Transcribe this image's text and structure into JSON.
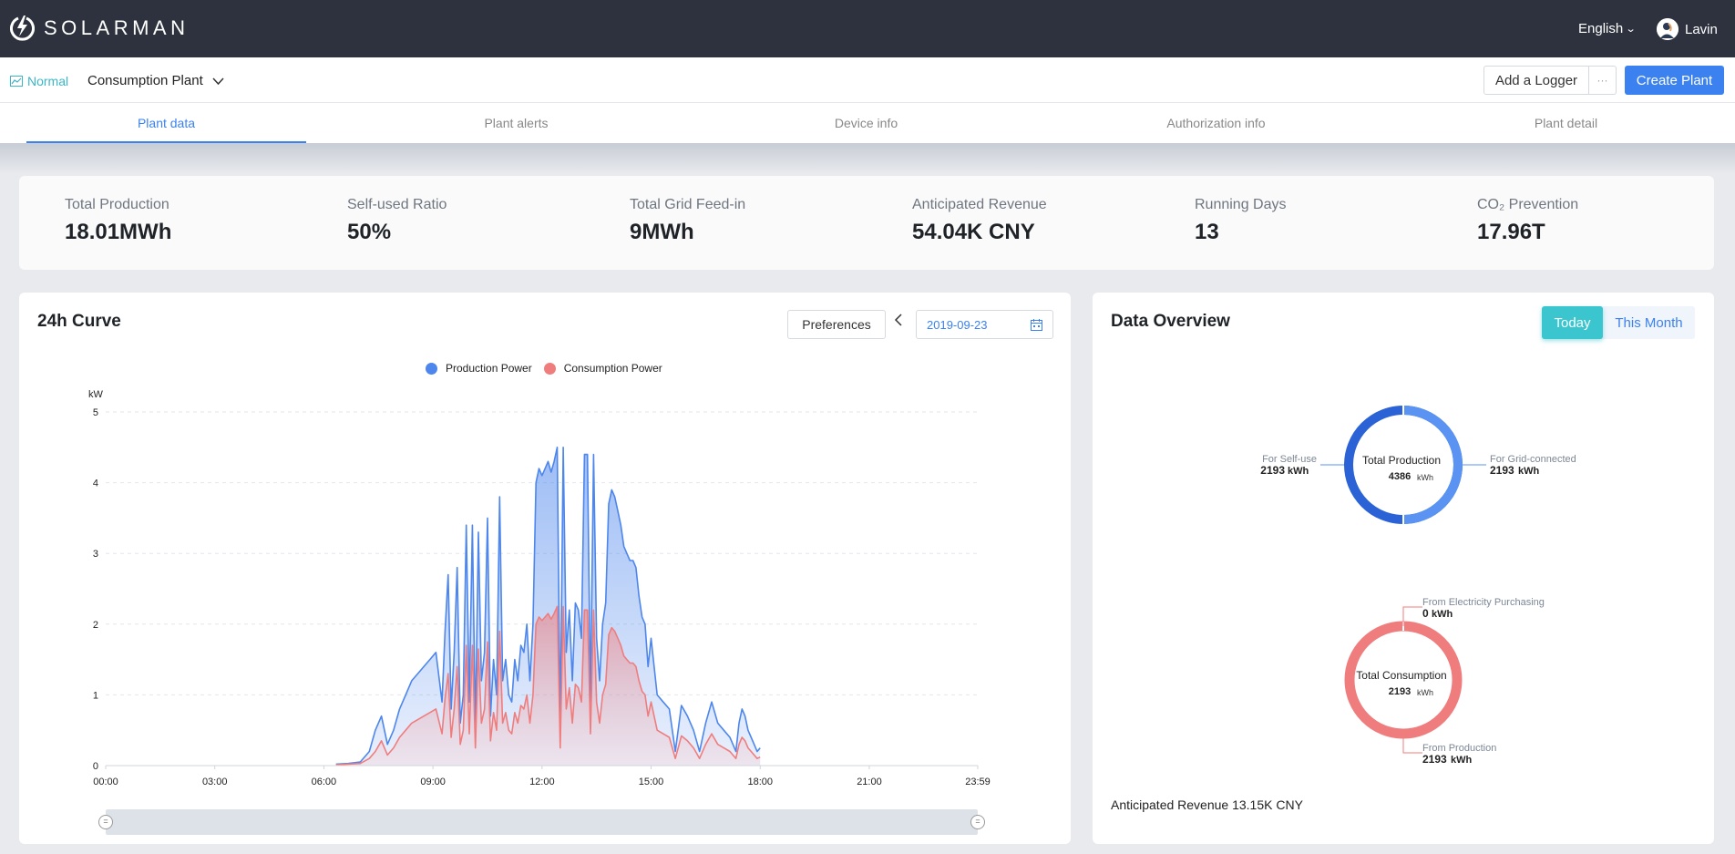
{
  "app": {
    "brand": "SOLARMAN",
    "language": "English",
    "user": "Lavin"
  },
  "subbar": {
    "status": "Normal",
    "plant": "Consumption Plant",
    "add_logger": "Add a Logger",
    "more": "···",
    "create_plant": "Create Plant"
  },
  "tabs": [
    "Plant data",
    "Plant alerts",
    "Device info",
    "Authorization info",
    "Plant detail"
  ],
  "stats": [
    {
      "label": "Total Production",
      "value": "18.01MWh"
    },
    {
      "label": "Self-used Ratio",
      "value": "50%"
    },
    {
      "label": "Total Grid Feed-in",
      "value": "9MWh"
    },
    {
      "label": "Anticipated Revenue",
      "value": "54.04K CNY"
    },
    {
      "label": "Running Days",
      "value": "13"
    },
    {
      "label": "CO₂ Prevention",
      "value": "17.96T"
    }
  ],
  "curve": {
    "title": "24h Curve",
    "preferences": "Preferences",
    "date": "2019-09-23"
  },
  "overview": {
    "title": "Data Overview",
    "today": "Today",
    "this_month": "This Month",
    "production": {
      "center_label": "Total Production",
      "center_value": "4386",
      "unit": "kWh",
      "left_label": "For Self-use",
      "left_value": "2193",
      "right_label": "For Grid-connected",
      "right_value": "2193"
    },
    "consumption": {
      "center_label": "Total Consumption",
      "center_value": "2193",
      "unit": "kWh",
      "top_label": "From Electricity Purchasing",
      "top_value": "0",
      "bottom_label": "From Production",
      "bottom_value": "2193"
    },
    "revenue": "Anticipated Revenue 13.15K CNY"
  },
  "colors": {
    "production": "#4d86ec",
    "consumption": "#f07d7d",
    "accent": "#3b82f0",
    "teal": "#3ac5cf",
    "self_use": "#2b63d6",
    "grid": "#5a93f2"
  },
  "chart_data": {
    "type": "area",
    "ylabel": "kW",
    "ylim": [
      0,
      5
    ],
    "yticks": [
      0,
      1,
      2,
      3,
      4,
      5
    ],
    "xlim": [
      "00:00",
      "23:59"
    ],
    "xticks": [
      "00:00",
      "03:00",
      "06:00",
      "09:00",
      "12:00",
      "15:00",
      "18:00",
      "21:00",
      "23:59"
    ],
    "series": [
      {
        "name": "Production Power",
        "x": [
          "06:20",
          "06:40",
          "07:00",
          "07:15",
          "07:25",
          "07:35",
          "07:45",
          "07:55",
          "08:05",
          "08:15",
          "08:25",
          "08:35",
          "08:45",
          "08:55",
          "09:05",
          "09:15",
          "09:20",
          "09:25",
          "09:30",
          "09:35",
          "09:40",
          "09:45",
          "09:50",
          "09:55",
          "10:00",
          "10:05",
          "10:10",
          "10:15",
          "10:20",
          "10:25",
          "10:30",
          "10:35",
          "10:40",
          "10:45",
          "10:50",
          "10:55",
          "11:00",
          "11:05",
          "11:10",
          "11:15",
          "11:20",
          "11:25",
          "11:30",
          "11:35",
          "11:40",
          "11:45",
          "11:50",
          "11:55",
          "12:00",
          "12:05",
          "12:10",
          "12:15",
          "12:20",
          "12:25",
          "12:30",
          "12:35",
          "12:40",
          "12:45",
          "12:50",
          "12:55",
          "13:00",
          "13:05",
          "13:10",
          "13:15",
          "13:20",
          "13:25",
          "13:30",
          "13:35",
          "13:40",
          "13:45",
          "13:50",
          "13:55",
          "14:00",
          "14:05",
          "14:10",
          "14:15",
          "14:20",
          "14:25",
          "14:30",
          "14:35",
          "14:40",
          "14:45",
          "14:50",
          "14:55",
          "15:00",
          "15:10",
          "15:20",
          "15:30",
          "15:40",
          "15:50",
          "16:00",
          "16:10",
          "16:20",
          "16:30",
          "16:40",
          "16:50",
          "17:00",
          "17:10",
          "17:15",
          "17:20",
          "17:25",
          "17:30",
          "17:35",
          "17:40",
          "17:45",
          "17:50",
          "17:55",
          "18:00"
        ],
        "values": [
          0.02,
          0.03,
          0.05,
          0.2,
          0.5,
          0.7,
          0.3,
          0.5,
          0.8,
          1.0,
          1.2,
          1.3,
          1.4,
          1.5,
          1.6,
          0.9,
          1.9,
          2.7,
          0.8,
          1.6,
          2.8,
          0.6,
          1.0,
          3.4,
          0.9,
          3.4,
          0.5,
          3.3,
          1.2,
          1.6,
          3.5,
          0.7,
          1.5,
          1.0,
          3.8,
          1.2,
          1.5,
          1.0,
          0.9,
          1.5,
          1.2,
          1.7,
          1.6,
          2.0,
          1.2,
          2.0,
          4.0,
          4.2,
          4.1,
          4.2,
          4.3,
          4.15,
          4.3,
          4.5,
          0.5,
          4.5,
          1.6,
          2.2,
          1.2,
          2.3,
          2.2,
          1.8,
          4.4,
          4.4,
          0.9,
          4.4,
          1.8,
          1.2,
          2.0,
          2.3,
          3.7,
          3.9,
          3.8,
          3.6,
          3.4,
          3.1,
          3.0,
          2.9,
          2.9,
          2.8,
          2.4,
          2.1,
          2.0,
          1.4,
          1.8,
          1.0,
          0.9,
          0.8,
          0.2,
          0.85,
          0.7,
          0.5,
          0.2,
          0.6,
          0.9,
          0.6,
          0.5,
          0.4,
          0.3,
          0.2,
          0.6,
          0.8,
          0.7,
          0.5,
          0.4,
          0.3,
          0.2,
          0.25
        ]
      },
      {
        "name": "Consumption Power",
        "x": [
          "06:20",
          "06:40",
          "07:00",
          "07:15",
          "07:25",
          "07:35",
          "07:45",
          "07:55",
          "08:05",
          "08:15",
          "08:25",
          "08:35",
          "08:45",
          "08:55",
          "09:05",
          "09:15",
          "09:20",
          "09:25",
          "09:30",
          "09:35",
          "09:40",
          "09:45",
          "09:50",
          "09:55",
          "10:00",
          "10:05",
          "10:10",
          "10:15",
          "10:20",
          "10:25",
          "10:30",
          "10:35",
          "10:40",
          "10:45",
          "10:50",
          "10:55",
          "11:00",
          "11:05",
          "11:10",
          "11:15",
          "11:20",
          "11:25",
          "11:30",
          "11:35",
          "11:40",
          "11:45",
          "11:50",
          "11:55",
          "12:00",
          "12:05",
          "12:10",
          "12:15",
          "12:20",
          "12:25",
          "12:30",
          "12:35",
          "12:40",
          "12:45",
          "12:50",
          "12:55",
          "13:00",
          "13:05",
          "13:10",
          "13:15",
          "13:20",
          "13:25",
          "13:30",
          "13:35",
          "13:40",
          "13:45",
          "13:50",
          "13:55",
          "14:00",
          "14:05",
          "14:10",
          "14:15",
          "14:20",
          "14:25",
          "14:30",
          "14:35",
          "14:40",
          "14:45",
          "14:50",
          "14:55",
          "15:00",
          "15:10",
          "15:20",
          "15:30",
          "15:40",
          "15:50",
          "16:00",
          "16:10",
          "16:20",
          "16:30",
          "16:40",
          "16:50",
          "17:00",
          "17:10",
          "17:15",
          "17:20",
          "17:25",
          "17:30",
          "17:35",
          "17:40",
          "17:45",
          "17:50",
          "17:55",
          "18:00"
        ],
        "values": [
          0.01,
          0.02,
          0.03,
          0.1,
          0.2,
          0.35,
          0.15,
          0.25,
          0.4,
          0.5,
          0.6,
          0.65,
          0.7,
          0.75,
          0.8,
          0.45,
          0.95,
          1.3,
          0.4,
          0.8,
          1.4,
          0.3,
          0.5,
          1.7,
          0.45,
          1.7,
          0.25,
          1.65,
          0.6,
          0.8,
          1.75,
          0.35,
          0.75,
          0.5,
          1.9,
          0.6,
          0.75,
          0.5,
          0.45,
          0.75,
          0.6,
          0.85,
          0.8,
          1.0,
          0.6,
          1.0,
          2.0,
          2.1,
          2.05,
          2.1,
          2.15,
          2.07,
          2.15,
          2.25,
          0.25,
          2.25,
          0.8,
          1.1,
          0.6,
          1.15,
          1.1,
          0.9,
          2.2,
          2.2,
          0.45,
          2.2,
          0.9,
          0.6,
          1.0,
          1.15,
          1.85,
          1.95,
          1.9,
          1.8,
          1.7,
          1.55,
          1.5,
          1.45,
          1.45,
          1.4,
          1.2,
          1.05,
          1.0,
          0.7,
          0.9,
          0.5,
          0.45,
          0.4,
          0.1,
          0.42,
          0.35,
          0.25,
          0.1,
          0.3,
          0.45,
          0.3,
          0.25,
          0.2,
          0.15,
          0.1,
          0.3,
          0.4,
          0.35,
          0.25,
          0.2,
          0.15,
          0.1,
          0.12
        ]
      }
    ],
    "legend": "top-center",
    "grid": true
  }
}
